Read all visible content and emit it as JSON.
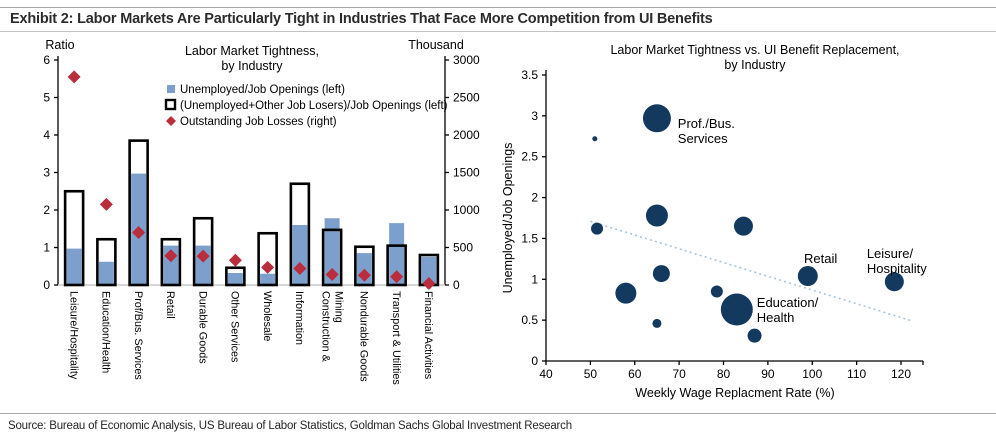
{
  "header": {
    "title": "Exhibit 2: Labor Markets Are Particularly Tight in Industries That Face More Competition from UI Benefits"
  },
  "footer": {
    "source": "Source: Bureau of Economic Analysis, US Bureau of Labor Statistics, Goldman Sachs Global Investment Research"
  },
  "colors": {
    "bar_fill": "#7C9FCB",
    "bar_outline": "#000000",
    "diamond": "#B92D3C",
    "bubble": "#14395E",
    "trendline": "#A9C4DA",
    "baseline_gray": "#C9C9C9",
    "axis": "#000000",
    "text": "#000000"
  },
  "chart_data": [
    {
      "type": "bar",
      "title_lines": [
        "Labor Market Tightness,",
        "by Industry"
      ],
      "left_axis_caption": "Ratio",
      "right_axis_caption": "Thousand",
      "left_ylim": [
        0,
        6
      ],
      "left_yticks": [
        0,
        1,
        2,
        3,
        4,
        5,
        6
      ],
      "right_ylim": [
        0,
        3000
      ],
      "right_yticks": [
        0,
        500,
        1000,
        1500,
        2000,
        2500,
        3000
      ],
      "grid": false,
      "legend_position": "top-center",
      "legend": [
        {
          "marker": "blue-square",
          "label": "Unemployed/Job Openings (left)"
        },
        {
          "marker": "black-open-square",
          "label": "(Unemployed+Other Job Losers)/Job Openings (left)"
        },
        {
          "marker": "red-diamond",
          "label": "Outstanding Job Losses (right)"
        }
      ],
      "categories": [
        [
          "Leisure/Hospitality"
        ],
        [
          "Education/Health"
        ],
        [
          "Prof/Bus. Services"
        ],
        [
          "Retail"
        ],
        [
          "Durable Goods"
        ],
        [
          "Other Services"
        ],
        [
          "Wholesale"
        ],
        [
          "Information"
        ],
        [
          "Construction &",
          "Mining"
        ],
        [
          "Nondurable Goods"
        ],
        [
          "Transport & Utilities"
        ],
        [
          "Financial Activities"
        ]
      ],
      "series": [
        {
          "name": "Unemployed/Job Openings (left)",
          "axis": "left",
          "values": [
            0.97,
            0.62,
            2.97,
            1.05,
            1.05,
            0.32,
            0.3,
            1.6,
            1.78,
            0.85,
            1.65,
            0.75
          ]
        },
        {
          "name": "(Unemployed+Other Job Losers)/Job Openings (left)",
          "axis": "left",
          "values": [
            2.5,
            1.22,
            3.85,
            1.22,
            1.78,
            0.46,
            1.38,
            2.7,
            1.47,
            1.02,
            1.05,
            0.8
          ]
        },
        {
          "name": "Outstanding Job Losses (right)",
          "axis": "right",
          "values": [
            2775,
            1075,
            700,
            390,
            385,
            330,
            235,
            220,
            140,
            130,
            110,
            20
          ]
        }
      ]
    },
    {
      "type": "scatter",
      "title_lines": [
        "Labor Market Tightness vs. UI Benefit Replacement,",
        "by Industry"
      ],
      "xlabel": "Weekly Wage Replacment Rate (%)",
      "ylabel": "Unemployed/Job Openings",
      "xlim": [
        40,
        125
      ],
      "xticks": [
        40,
        50,
        60,
        70,
        80,
        90,
        100,
        110,
        120
      ],
      "ylim": [
        0,
        3.5
      ],
      "yticks": [
        0,
        0.5,
        1,
        1.5,
        2,
        2.5,
        3,
        3.5
      ],
      "grid": false,
      "points": [
        {
          "x": 51.0,
          "y": 2.72,
          "r": 2.5
        },
        {
          "x": 65.0,
          "y": 2.97,
          "r": 14,
          "name": "Prof./Bus. Services"
        },
        {
          "x": 51.5,
          "y": 1.62,
          "r": 6
        },
        {
          "x": 65.0,
          "y": 1.78,
          "r": 11
        },
        {
          "x": 84.5,
          "y": 1.65,
          "r": 9.5
        },
        {
          "x": 58.0,
          "y": 0.83,
          "r": 10.5
        },
        {
          "x": 66.0,
          "y": 1.07,
          "r": 8.5
        },
        {
          "x": 65.0,
          "y": 0.46,
          "r": 4.5
        },
        {
          "x": 78.5,
          "y": 0.85,
          "r": 6
        },
        {
          "x": 83.0,
          "y": 0.63,
          "r": 16,
          "name": "Education/Health"
        },
        {
          "x": 87.0,
          "y": 0.31,
          "r": 7
        },
        {
          "x": 99.0,
          "y": 1.04,
          "r": 10,
          "name": "Retail"
        },
        {
          "x": 118.5,
          "y": 0.97,
          "r": 9.5,
          "name": "Leisure/Hospitality"
        }
      ],
      "annotations": [
        {
          "text_lines": [
            "Prof./Bus.",
            "Services"
          ],
          "x": 69.7,
          "y": 2.85,
          "anchor": "start"
        },
        {
          "text_lines": [
            "Retail"
          ],
          "x": 101.9,
          "y": 1.2,
          "anchor": "middle"
        },
        {
          "text_lines": [
            "Leisure/",
            "Hospitality"
          ],
          "x": 112.3,
          "y": 1.26,
          "anchor": "start"
        },
        {
          "text_lines": [
            "Education/",
            "Health"
          ],
          "x": 87.5,
          "y": 0.66,
          "anchor": "start"
        }
      ],
      "trendline": {
        "style": "dotted",
        "x1": 50.0,
        "y1": 1.71,
        "x2": 122.5,
        "y2": 0.49
      }
    }
  ]
}
